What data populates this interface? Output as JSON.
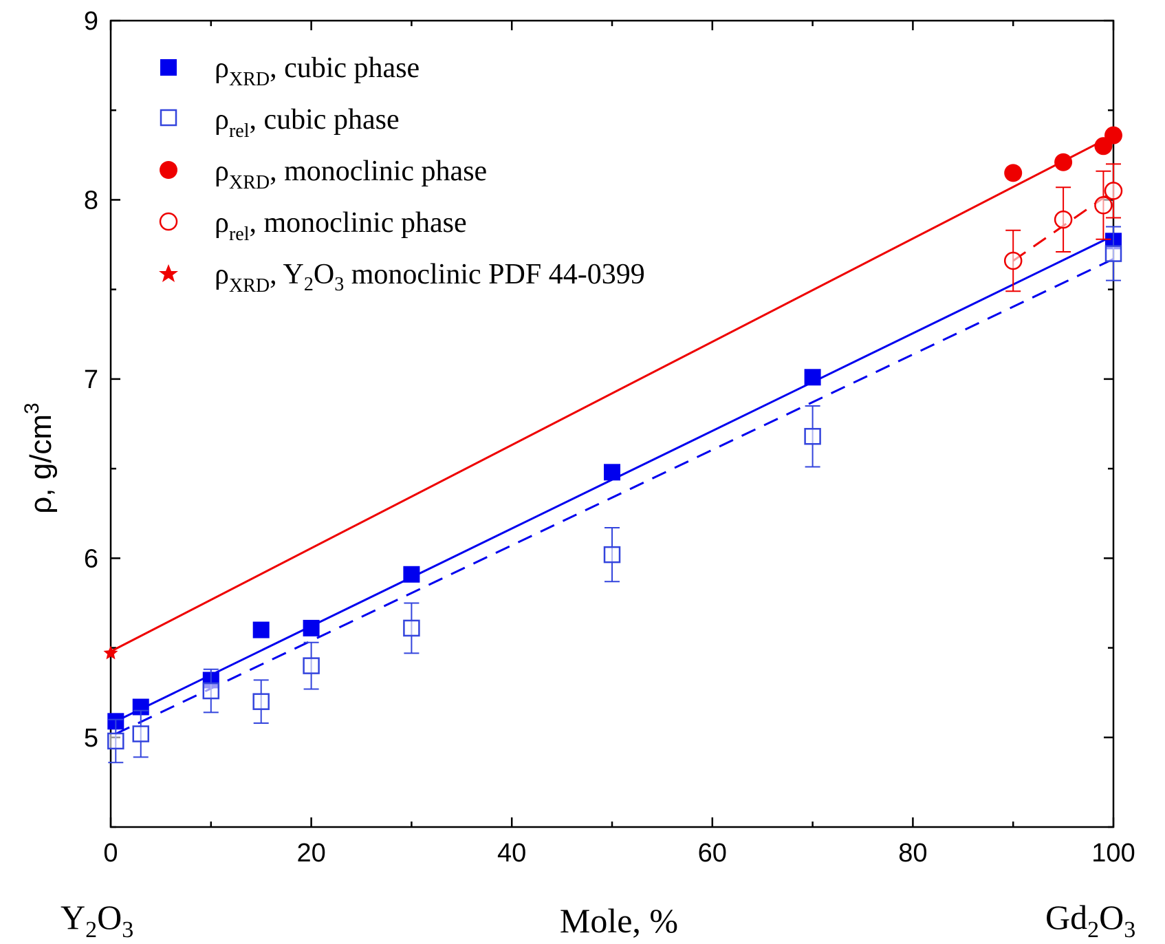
{
  "chart_data": {
    "type": "scatter",
    "xlabel": "Mole, %",
    "ylabel": "ρ, g/cm",
    "ylabel_superscript": "3",
    "xlim": [
      0,
      100
    ],
    "ylim": [
      4.5,
      9
    ],
    "x_ticks": [
      0,
      20,
      40,
      60,
      80,
      100
    ],
    "y_ticks": [
      5,
      6,
      7,
      8,
      9
    ],
    "x_end_labels": {
      "left": {
        "main1": "Y",
        "sub1": "2",
        "main2": "O",
        "sub2": "3"
      },
      "right": {
        "main1": "Gd",
        "sub1": "2",
        "main2": "O",
        "sub2": "3"
      }
    },
    "colors": {
      "blue": "#0000ee",
      "light_blue": "#3344dd",
      "red": "#ee0000"
    },
    "series": [
      {
        "name": "ρXRD, cubic phase",
        "legend": {
          "rho": "ρ",
          "sub": "XRD",
          "rest": ", cubic phase"
        },
        "marker": "square-filled",
        "color": "#0000ee",
        "x": [
          0.5,
          3,
          10,
          15,
          20,
          30,
          50,
          70,
          100
        ],
        "y": [
          5.09,
          5.17,
          5.32,
          5.6,
          5.61,
          5.91,
          6.48,
          7.01,
          7.77
        ]
      },
      {
        "name": "ρrel, cubic phase",
        "legend": {
          "rho": "ρ",
          "sub": "rel",
          "rest": ", cubic phase"
        },
        "marker": "square-open",
        "color": "#3344dd",
        "x": [
          0.5,
          3,
          10,
          15,
          20,
          30,
          50,
          70,
          100
        ],
        "y": [
          4.98,
          5.02,
          5.26,
          5.2,
          5.4,
          5.61,
          6.02,
          6.68,
          7.7
        ],
        "err": [
          0.12,
          0.13,
          0.12,
          0.12,
          0.13,
          0.14,
          0.15,
          0.17,
          0.15
        ]
      },
      {
        "name": "ρXRD, monoclinic phase",
        "legend": {
          "rho": "ρ",
          "sub": "XRD",
          "rest": ", monoclinic phase"
        },
        "marker": "circle-filled",
        "color": "#ee0000",
        "x": [
          90,
          95,
          99,
          100
        ],
        "y": [
          8.15,
          8.21,
          8.3,
          8.36
        ]
      },
      {
        "name": "ρrel, monoclinic phase",
        "legend": {
          "rho": "ρ",
          "sub": "rel",
          "rest": ", monoclinic phase"
        },
        "marker": "circle-open",
        "color": "#ee0000",
        "x": [
          90,
          95,
          99,
          100
        ],
        "y": [
          7.66,
          7.89,
          7.97,
          8.05
        ],
        "err": [
          0.17,
          0.18,
          0.19,
          0.15
        ]
      },
      {
        "name": "ρXRD, Y2O3 monoclinic PDF 44-0399",
        "legend": {
          "rho": "ρ",
          "sub": "XRD",
          "rest1": ", Y",
          "sub2": "2",
          "rest2": "O",
          "sub3": "3",
          "rest3": " monoclinic PDF 44-0399"
        },
        "marker": "star",
        "color": "#ee0000",
        "x": [
          0
        ],
        "y": [
          5.47
        ]
      }
    ],
    "fit_lines": [
      {
        "name": "cubic XRD fit",
        "style": "solid",
        "color": "#0000ee",
        "x": [
          0.5,
          100
        ],
        "y": [
          5.09,
          7.8
        ]
      },
      {
        "name": "cubic rel fit",
        "style": "dashed",
        "color": "#0000ee",
        "x": [
          0.5,
          100
        ],
        "y": [
          5.02,
          7.67
        ]
      },
      {
        "name": "monoclinic XRD fit",
        "style": "solid",
        "color": "#ee0000",
        "x": [
          0,
          100
        ],
        "y": [
          5.48,
          8.36
        ]
      },
      {
        "name": "monoclinic rel fit",
        "style": "dashed",
        "color": "#ee0000",
        "x": [
          90,
          100
        ],
        "y": [
          7.66,
          8.05
        ]
      }
    ]
  }
}
